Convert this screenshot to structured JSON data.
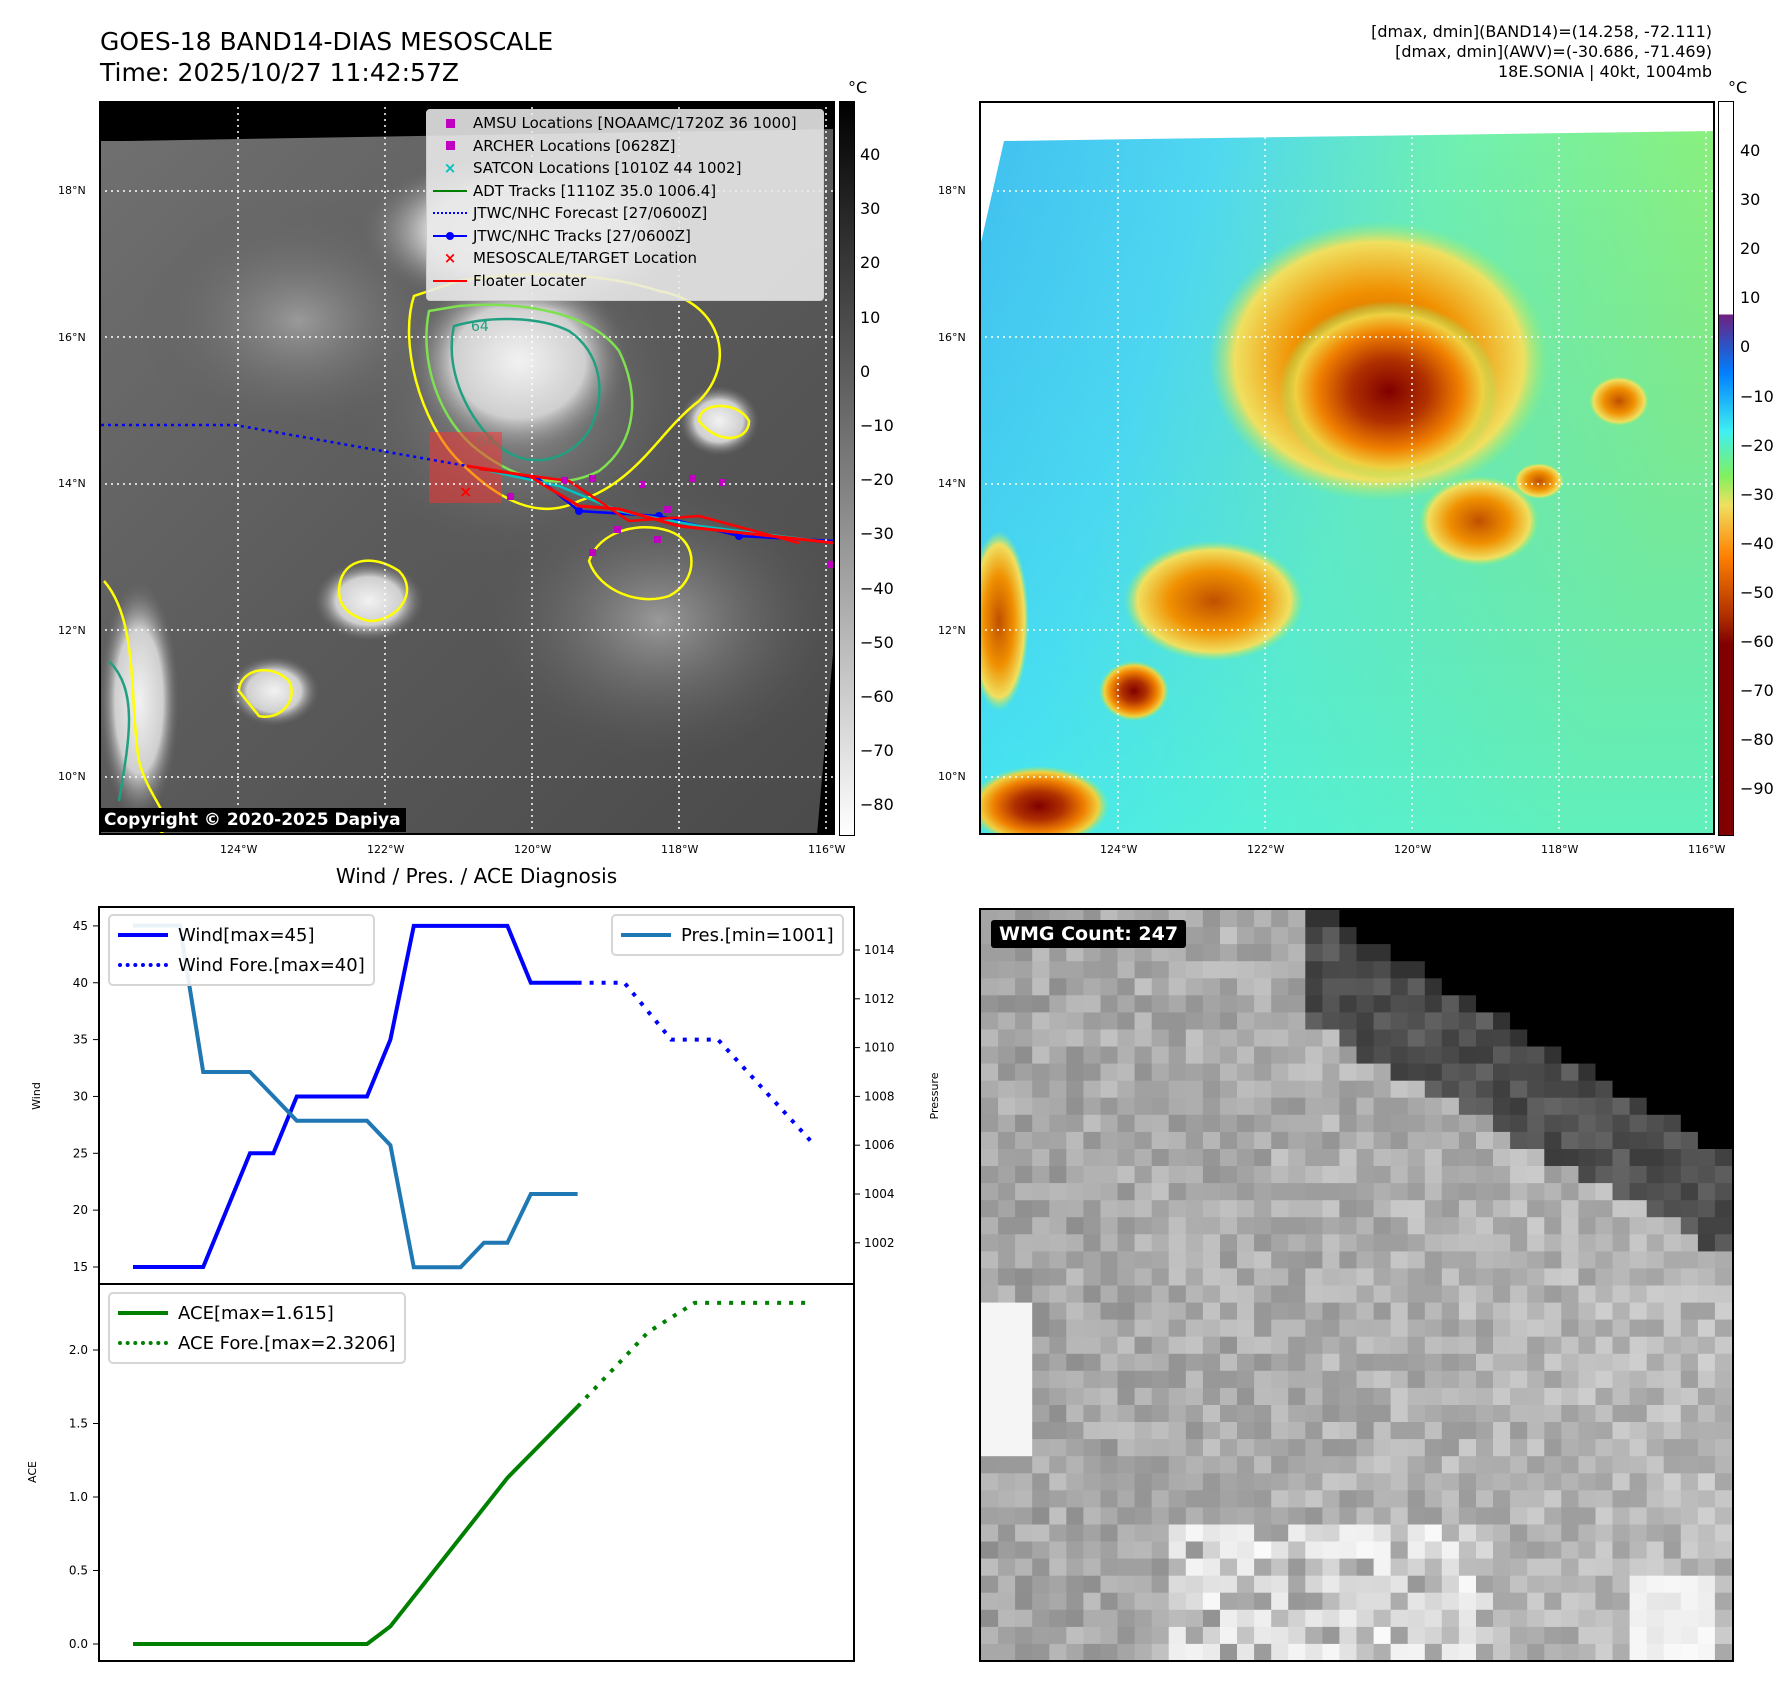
{
  "header": {
    "title_line1": "GOES-18 BAND14-DIAS MESOSCALE",
    "title_line2": "Time: 2025/10/27 11:42:57Z",
    "info_line1": "[dmax, dmin](BAND14)=(14.258, -72.111)",
    "info_line2": "[dmax, dmin](AWV)=(-30.686, -71.469)",
    "info_line3": "18E.SONIA | 40kt, 1004mb"
  },
  "maps": {
    "lat_labels": [
      "18°N",
      "16°N",
      "14°N",
      "12°N",
      "10°N"
    ],
    "lon_labels": [
      "124°W",
      "122°W",
      "120°W",
      "118°W",
      "116°W"
    ],
    "copyright": "Copyright © 2020-2025 Dapiya",
    "contour_labels": [
      "64",
      "64"
    ],
    "legend": [
      {
        "label": "AMSU Locations [NOAAMC/1720Z 36 1000]",
        "symbol": "square",
        "color": "#c000c0"
      },
      {
        "label": "ARCHER Locations [0628Z]",
        "symbol": "square",
        "color": "#c000c0"
      },
      {
        "label": "SATCON Locations [1010Z 44 1002]",
        "symbol": "x",
        "color": "#00c0c0"
      },
      {
        "label": "ADT Tracks [1110Z 35.0 1006.4]",
        "symbol": "line",
        "color": "#008000"
      },
      {
        "label": "JTWC/NHC Forecast [27/0600Z]",
        "symbol": "dotted",
        "color": "#0000ff"
      },
      {
        "label": "JTWC/NHC Tracks [27/0600Z]",
        "symbol": "line-dot",
        "color": "#0000ff"
      },
      {
        "label": "MESOSCALE/TARGET Location",
        "symbol": "x",
        "color": "#ff0000"
      },
      {
        "label": "Floater Locater",
        "symbol": "line",
        "color": "#ff0000"
      }
    ],
    "colorbar_left": {
      "unit": "°C",
      "ticks": [
        "40",
        "30",
        "20",
        "10",
        "0",
        "−10",
        "−20",
        "−30",
        "−40",
        "−50",
        "−60",
        "−70",
        "−80"
      ]
    },
    "colorbar_right": {
      "unit": "°C",
      "ticks": [
        "40",
        "30",
        "20",
        "10",
        "0",
        "−10",
        "−20",
        "−30",
        "−40",
        "−50",
        "−60",
        "−70",
        "−80",
        "−90"
      ]
    }
  },
  "wmg": {
    "label": "WMG Count: 247"
  },
  "chart_data": [
    {
      "type": "line",
      "title": "Wind / Pres. / ACE Diagnosis",
      "ylabel": "Wind",
      "y2label": "Pressure",
      "ylim": [
        15,
        45
      ],
      "y2lim": [
        1001,
        1015
      ],
      "yticks": [
        "15",
        "20",
        "25",
        "30",
        "35",
        "40",
        "45"
      ],
      "y2ticks": [
        "1002",
        "1004",
        "1006",
        "1008",
        "1010",
        "1012",
        "1014"
      ],
      "legend_left": [
        "Wind[max=45]",
        "Wind Fore.[max=40]"
      ],
      "legend_right": [
        "Pres.[min=1001]"
      ],
      "series": [
        {
          "name": "Wind[max=45]",
          "color": "#0000ff",
          "style": "solid",
          "axis": "left",
          "x": [
            0,
            3,
            5,
            6,
            7,
            10,
            11,
            12,
            16,
            17,
            19
          ],
          "y": [
            15,
            15,
            25,
            25,
            30,
            30,
            35,
            45,
            45,
            40,
            40
          ]
        },
        {
          "name": "Wind Fore.[max=40]",
          "color": "#0000ff",
          "style": "dotted",
          "axis": "left",
          "x": [
            19,
            21,
            23,
            25,
            29
          ],
          "y": [
            40,
            40,
            35,
            35,
            26
          ]
        },
        {
          "name": "Pres.[min=1001]",
          "color": "#1f77b4",
          "style": "solid",
          "axis": "right",
          "x": [
            0,
            2,
            3,
            5,
            7,
            10,
            11,
            12,
            14,
            15,
            16,
            17,
            19
          ],
          "y": [
            1015,
            1015,
            1009,
            1009,
            1007,
            1007,
            1006,
            1001,
            1001,
            1002,
            1002,
            1004,
            1004
          ]
        }
      ]
    },
    {
      "type": "line",
      "ylabel": "ACE",
      "ylim": [
        0,
        2.4
      ],
      "yticks": [
        "0.0",
        "0.5",
        "1.0",
        "1.5",
        "2.0"
      ],
      "legend": [
        "ACE[max=1.615]",
        "ACE Fore.[max=2.3206]"
      ],
      "series": [
        {
          "name": "ACE[max=1.615]",
          "color": "#008000",
          "style": "solid",
          "x": [
            0,
            10,
            11,
            16,
            19
          ],
          "y": [
            0,
            0,
            0.12,
            1.13,
            1.615
          ]
        },
        {
          "name": "ACE Fore.[max=2.3206]",
          "color": "#008000",
          "style": "dotted",
          "x": [
            19,
            21,
            22,
            24,
            29
          ],
          "y": [
            1.615,
            1.95,
            2.12,
            2.3206,
            2.3206
          ]
        }
      ]
    }
  ]
}
